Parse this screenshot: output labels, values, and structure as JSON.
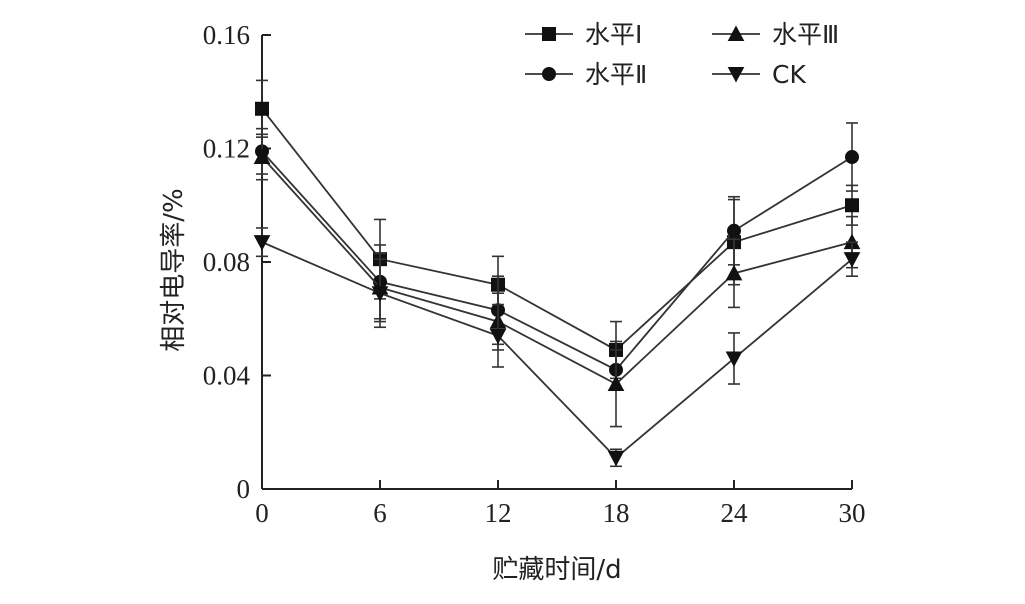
{
  "chart_data": {
    "type": "line",
    "xlabel": "贮藏时间/d",
    "ylabel": "相对电导率/%",
    "x": [
      0,
      6,
      12,
      18,
      24,
      30
    ],
    "xlim": [
      0,
      30
    ],
    "ylim": [
      0,
      0.16
    ],
    "x_ticks": [
      "0",
      "6",
      "12",
      "18",
      "24",
      "30"
    ],
    "y_ticks": [
      "0",
      "0.04",
      "0.08",
      "0.12",
      "0.16"
    ],
    "grid": false,
    "legend_position": "top-right",
    "series": [
      {
        "name": "水平Ⅰ",
        "marker": "square",
        "values": [
          0.134,
          0.081,
          0.072,
          0.049,
          0.087,
          0.1
        ],
        "errors": [
          0.01,
          0.014,
          0.01,
          0.01,
          0.015,
          0.007
        ]
      },
      {
        "name": "水平Ⅱ",
        "marker": "circle",
        "values": [
          0.119,
          0.073,
          0.063,
          0.042,
          0.091,
          0.117
        ],
        "errors": [
          0.008,
          0.013,
          0.012,
          0.007,
          0.012,
          0.012
        ]
      },
      {
        "name": "水平Ⅲ",
        "marker": "triangle-up",
        "values": [
          0.117,
          0.071,
          0.059,
          0.037,
          0.076,
          0.087
        ],
        "errors": [
          0.008,
          0.012,
          0.01,
          0.015,
          0.012,
          0.009
        ]
      },
      {
        "name": "CK",
        "marker": "triangle-down",
        "values": [
          0.087,
          0.069,
          0.054,
          0.011,
          0.046,
          0.081
        ],
        "errors": [
          0.005,
          0.012,
          0.011,
          0.003,
          0.009,
          0.006
        ]
      }
    ]
  }
}
